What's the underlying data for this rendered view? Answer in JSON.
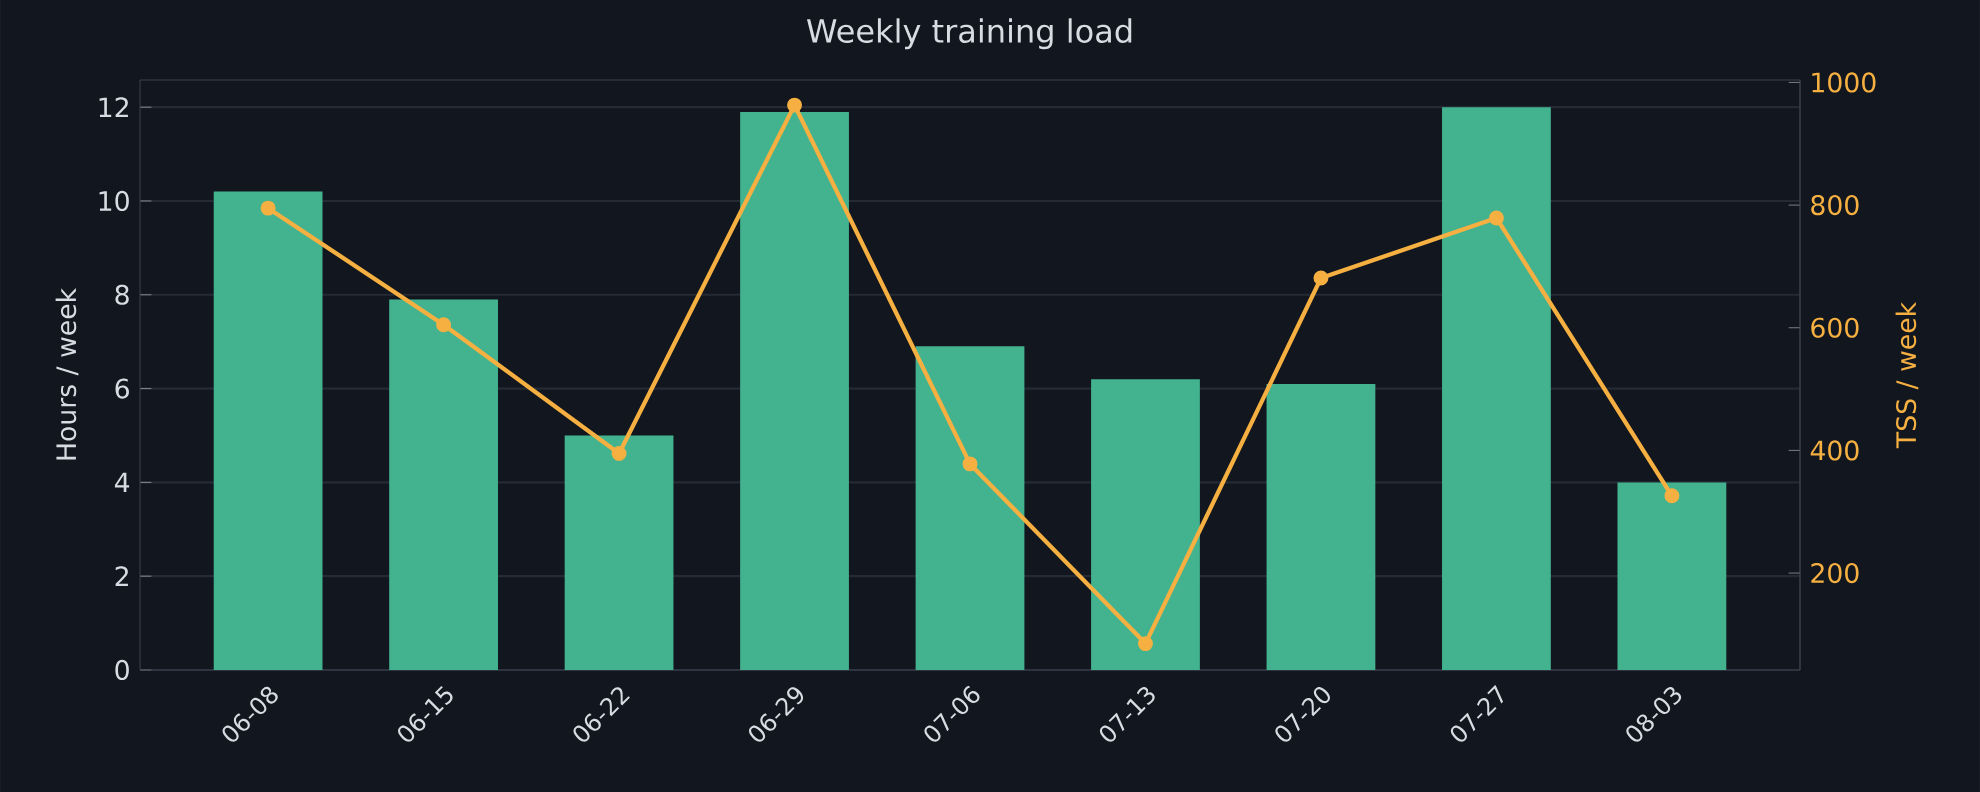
{
  "chart_data": {
    "type": "bar",
    "title": "Weekly training load",
    "ylabel": "Hours / week",
    "y2label": "TSS / week",
    "categories": [
      "06-08",
      "06-15",
      "06-22",
      "06-29",
      "07-06",
      "07-13",
      "07-20",
      "07-27",
      "08-03"
    ],
    "series": [
      {
        "color": "#43b38f",
        "values": [
          10.2,
          7.9,
          5.0,
          11.9,
          6.9,
          6.2,
          6.1,
          12.0,
          4.0
        ]
      },
      {
        "type": "line",
        "axis": "y2",
        "color": "#f5b041",
        "values": [
          795,
          605,
          395,
          963,
          378,
          85,
          681,
          779,
          326
        ]
      }
    ],
    "ylim": [
      0,
      12.58
    ],
    "yticks": [
      0,
      2,
      4,
      6,
      8,
      10,
      12
    ],
    "y2lim": [
      42,
      1004
    ],
    "y2ticks": [
      200,
      400,
      600,
      800,
      1000
    ],
    "grid": "y",
    "marker": "circle",
    "line_style": "solid"
  }
}
